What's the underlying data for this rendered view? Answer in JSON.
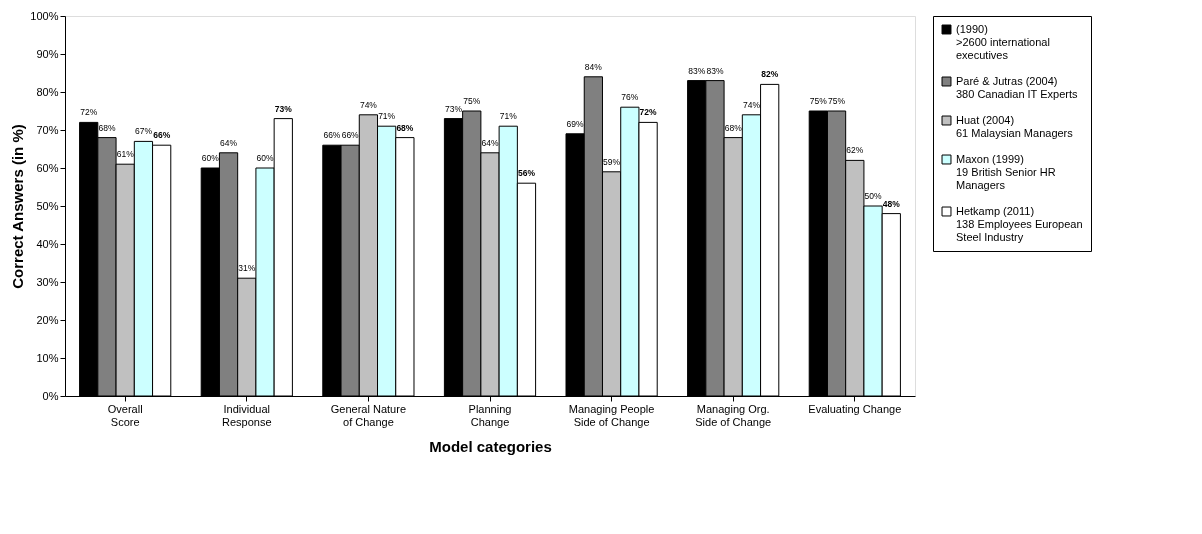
{
  "chart_data": {
    "type": "bar",
    "xlabel": "Model categories",
    "ylabel": "Correct Answers (in %)",
    "categories": [
      "Overall\nScore",
      "Individual\nResponse",
      "General Nature\nof Change",
      "Planning\nChange",
      "Managing People\nSide of Change",
      "Managing Org.\nSide of Change",
      "Evaluating Change"
    ],
    "series": [
      {
        "name": "(1990)\n>2600 international\nexecutives",
        "color": "#000000",
        "values": [
          72,
          60,
          66,
          73,
          69,
          83,
          75
        ],
        "value_labels": [
          "72%",
          "60%",
          "66%",
          "73%",
          "69%",
          "83%",
          "75%"
        ]
      },
      {
        "name": "Paré & Jutras (2004)\n380 Canadian IT Experts",
        "color": "#808080",
        "values": [
          68,
          64,
          66,
          75,
          84,
          83,
          75
        ],
        "value_labels": [
          "68%",
          "64%",
          "66%",
          "75%",
          "84%",
          "83%",
          "75%"
        ]
      },
      {
        "name": "Huat (2004)\n61 Malaysian Managers",
        "color": "#c0c0c0",
        "values": [
          61,
          31,
          74,
          64,
          59,
          68,
          62
        ],
        "value_labels": [
          "61%",
          "31%",
          "74%",
          "64%",
          "59%",
          "68%",
          "62%"
        ]
      },
      {
        "name": "Maxon (1999)\n19 British Senior HR\nManagers",
        "color": "#ccffff",
        "values": [
          67,
          60,
          71,
          71,
          76,
          74,
          50
        ],
        "value_labels": [
          "67%",
          "60%",
          "71%",
          "71%",
          "76%",
          "74%",
          "50%"
        ]
      },
      {
        "name": "Hetkamp (2011)\n138 Employees European\nSteel Industry",
        "color": "#ffffff",
        "values": [
          66,
          73,
          68,
          56,
          72,
          82,
          48
        ],
        "value_labels": [
          "66%",
          "73%",
          "68%",
          "56%",
          "72%",
          "82%",
          "48%"
        ]
      }
    ],
    "ylim": [
      0,
      100
    ],
    "yticks": [
      {
        "value": 0,
        "label": "0%"
      },
      {
        "value": 10,
        "label": "10%"
      },
      {
        "value": 20,
        "label": "20%"
      },
      {
        "value": 30,
        "label": "30%"
      },
      {
        "value": 40,
        "label": "40%"
      },
      {
        "value": 50,
        "label": "50%"
      },
      {
        "value": 60,
        "label": "60%"
      },
      {
        "value": 70,
        "label": "70%"
      },
      {
        "value": 80,
        "label": "80%"
      },
      {
        "value": 90,
        "label": "90%"
      },
      {
        "value": 100,
        "label": "100%"
      }
    ],
    "grid": false,
    "legend": "right"
  }
}
